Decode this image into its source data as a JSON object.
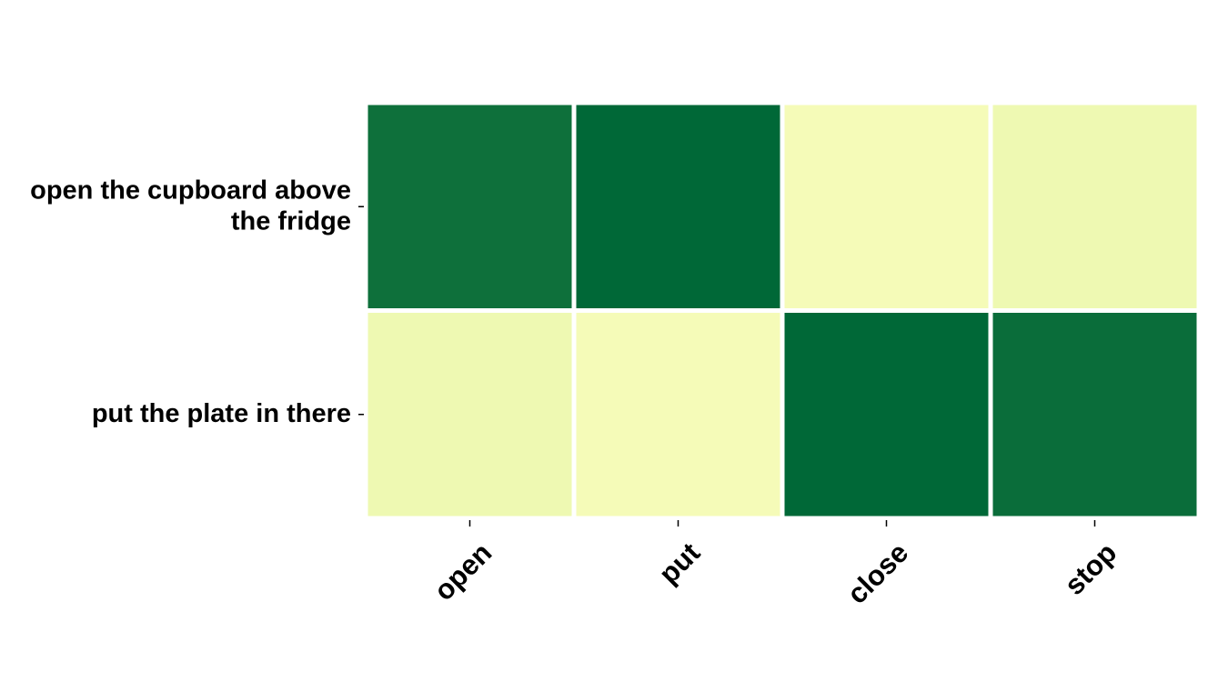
{
  "chart_data": {
    "type": "heatmap",
    "title": "",
    "xlabel": "",
    "ylabel": "",
    "colormap": "YlGn",
    "colorbar": false,
    "row_labels": [
      [
        "open the cupboard above",
        "the fridge"
      ],
      [
        "put the plate in there"
      ]
    ],
    "column_labels": [
      "open",
      "put",
      "close",
      "stop"
    ],
    "x_tick_rotation_deg": 45,
    "values": [
      [
        0.92,
        1.0,
        0.02,
        0.06
      ],
      [
        0.06,
        0.02,
        1.0,
        0.95
      ]
    ],
    "colors": [
      [
        "#0e703b",
        "#006837",
        "#f5fbb8",
        "#eef9b2"
      ],
      [
        "#eef9b2",
        "#f5fbb8",
        "#006837",
        "#0a6d3a"
      ]
    ]
  }
}
